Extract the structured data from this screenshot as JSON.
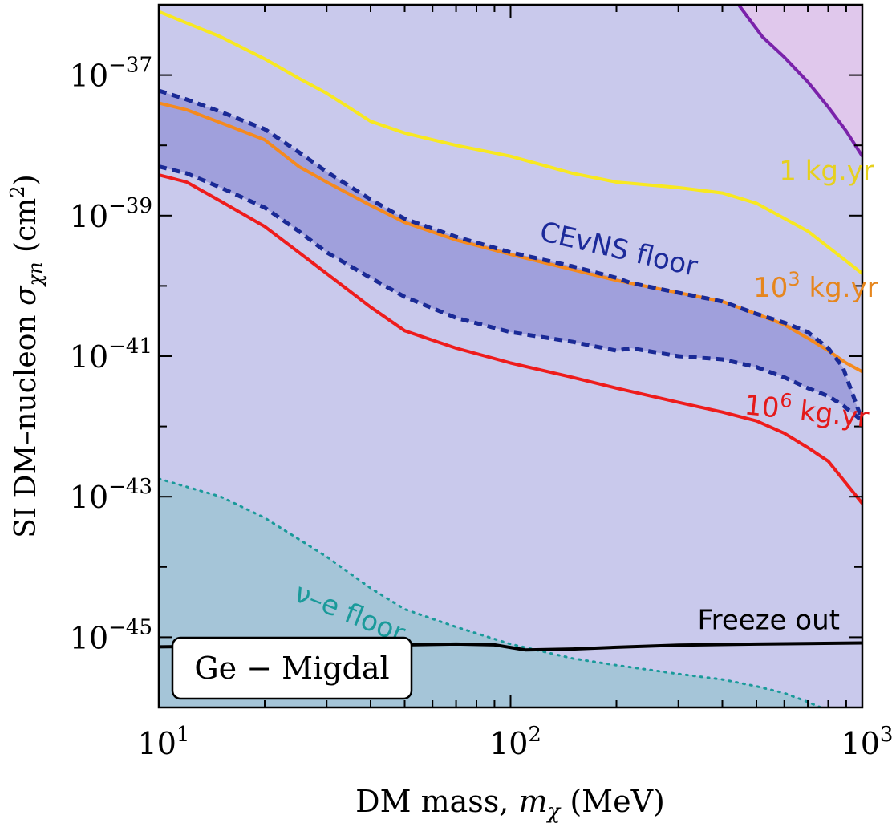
{
  "chart_data": {
    "type": "line",
    "xlabel_text": "DM mass, ",
    "xlabel_var": "m",
    "xlabel_sub": "χ",
    "xlabel_unit": " (MeV)",
    "ylabel_text": "SI DM–nucleon ",
    "ylabel_var": "σ",
    "ylabel_sub": "χn",
    "ylabel_unit": " (cm",
    "ylabel_unit_sup": "2",
    "ylabel_unit_end": ")",
    "x_scale": "log",
    "y_scale": "log",
    "xlim": [
      10,
      1000
    ],
    "ylim": [
      1e-46,
      1e-36
    ],
    "x_ticks": [
      {
        "value": 10,
        "base": "10",
        "exp": "1"
      },
      {
        "value": 100,
        "base": "10",
        "exp": "2"
      },
      {
        "value": 1000,
        "base": "10",
        "exp": "3"
      }
    ],
    "y_ticks": [
      {
        "value": 1e-37,
        "base": "10",
        "exp": "−37"
      },
      {
        "value": 1e-39,
        "base": "10",
        "exp": "−39"
      },
      {
        "value": 1e-41,
        "base": "10",
        "exp": "−41"
      },
      {
        "value": 1e-43,
        "base": "10",
        "exp": "−43"
      },
      {
        "value": 1e-45,
        "base": "10",
        "exp": "−45"
      }
    ],
    "regions": [
      {
        "key": "excluded",
        "color": "#c9c9ec",
        "upper": {
          "x": [
            10,
            1000
          ],
          "y": [
            1e-36,
            1e-36
          ]
        }
      },
      {
        "key": "cevns",
        "color": "#a0a0dc",
        "upper": {
          "x": [
            10,
            12,
            15,
            20,
            25,
            30,
            40,
            50,
            70,
            100,
            150,
            200,
            220,
            300,
            400,
            500,
            600,
            700,
            800,
            880,
            1000
          ],
          "y": [
            6e-38,
            4.5e-38,
            3e-38,
            1.7e-38,
            8e-39,
            4.2e-39,
            1.7e-39,
            9e-40,
            5e-40,
            3e-40,
            1.9e-40,
            1.3e-40,
            1.1e-40,
            8e-41,
            6e-41,
            4e-41,
            3e-41,
            2.2e-41,
            1.3e-41,
            7e-42,
            1.2e-42
          ]
        },
        "lower": {
          "x": [
            10,
            12,
            15,
            20,
            25,
            30,
            40,
            50,
            70,
            100,
            150,
            200,
            220,
            300,
            400,
            500,
            600,
            700,
            800,
            880,
            1000
          ],
          "y": [
            5e-39,
            4e-39,
            2.5e-39,
            1.3e-39,
            6e-40,
            3e-40,
            1.3e-40,
            7e-41,
            3.5e-41,
            2.2e-41,
            1.6e-41,
            1.2e-41,
            1.3e-41,
            1e-41,
            9e-42,
            7e-42,
            5e-42,
            3.5e-42,
            2.7e-42,
            2e-42,
            1.2e-42
          ]
        }
      },
      {
        "key": "nu_e",
        "color": "#a5c5d8",
        "upper": {
          "x": [
            10,
            15,
            20,
            30,
            40,
            50,
            70,
            100,
            150,
            200,
            300,
            400,
            500,
            600,
            700,
            800
          ],
          "y": [
            1.8e-43,
            1e-43,
            5e-44,
            1.4e-44,
            5e-45,
            2.5e-45,
            1.4e-45,
            8e-46,
            5e-46,
            4e-46,
            3e-46,
            2.5e-46,
            2e-46,
            1.6e-46,
            1.2e-46,
            9e-47
          ]
        }
      },
      {
        "key": "purple_excl",
        "color": "#e0c8ec",
        "upper": {
          "x": [
            445,
            1000
          ],
          "y": [
            1e-36,
            1e-36
          ]
        },
        "lower": {
          "x": [
            445,
            480,
            520,
            600,
            700,
            800,
            900,
            1000
          ],
          "y": [
            1e-36,
            6e-37,
            3.5e-37,
            1.8e-37,
            8e-38,
            3.5e-38,
            1.6e-38,
            7e-39
          ]
        }
      }
    ],
    "series": [
      {
        "key": "ge_1kgyr",
        "color": "#f8e820",
        "width": 4,
        "dash": "",
        "x": [
          10,
          12,
          15,
          20,
          25,
          30,
          40,
          50,
          70,
          100,
          150,
          200,
          300,
          400,
          500,
          700,
          1000
        ],
        "y": [
          8e-37,
          5.5e-37,
          3.5e-37,
          1.7e-37,
          9e-38,
          5.5e-38,
          2.2e-38,
          1.5e-38,
          1e-38,
          7e-39,
          4e-39,
          3e-39,
          2.5e-39,
          2.1e-39,
          1.5e-39,
          6e-40,
          1.5e-40
        ]
      },
      {
        "key": "ge_1e3kgyr",
        "color": "#f58a1e",
        "width": 4,
        "dash": "",
        "x": [
          10,
          12,
          15,
          20,
          25,
          30,
          40,
          50,
          70,
          100,
          150,
          200,
          300,
          400,
          500,
          600,
          700,
          800,
          900,
          1000
        ],
        "y": [
          4e-38,
          3.2e-38,
          2.1e-38,
          1.2e-38,
          5e-39,
          3e-39,
          1.4e-39,
          8e-40,
          4.5e-40,
          2.8e-40,
          1.7e-40,
          1.2e-40,
          8e-41,
          6e-41,
          4e-41,
          2.8e-41,
          1.8e-41,
          1.2e-41,
          8e-42,
          6e-42
        ]
      },
      {
        "key": "ge_1e6kgyr",
        "color": "#ee1c1c",
        "width": 4,
        "dash": "",
        "x": [
          10,
          12,
          15,
          20,
          25,
          30,
          40,
          50,
          70,
          100,
          150,
          200,
          300,
          400,
          500,
          600,
          700,
          800,
          1000
        ],
        "y": [
          3.8e-39,
          3e-39,
          1.6e-39,
          7e-40,
          3e-40,
          1.5e-40,
          5e-41,
          2.3e-41,
          1.3e-41,
          8e-42,
          5e-42,
          3.5e-42,
          2.2e-42,
          1.6e-42,
          1.2e-42,
          8e-43,
          5e-43,
          3.2e-43,
          8e-44
        ]
      },
      {
        "key": "cevns_upper",
        "color": "#1a2a96",
        "width": 5,
        "dash": "10,7",
        "x": [
          10,
          12,
          15,
          20,
          25,
          30,
          40,
          50,
          70,
          100,
          150,
          200,
          220,
          300,
          400,
          500,
          600,
          700,
          800,
          880,
          1000
        ],
        "y": [
          6e-38,
          4.5e-38,
          3e-38,
          1.7e-38,
          8e-39,
          4.2e-39,
          1.7e-39,
          9e-40,
          5e-40,
          3e-40,
          1.9e-40,
          1.3e-40,
          1.1e-40,
          8e-41,
          6e-41,
          4e-41,
          3e-41,
          2.2e-41,
          1.3e-41,
          7e-42,
          1.2e-42
        ]
      },
      {
        "key": "cevns_lower",
        "color": "#1a2a96",
        "width": 5,
        "dash": "10,7",
        "x": [
          10,
          12,
          15,
          20,
          25,
          30,
          40,
          50,
          70,
          100,
          150,
          200,
          220,
          300,
          400,
          500,
          600,
          700,
          800,
          880,
          1000
        ],
        "y": [
          5e-39,
          4e-39,
          2.5e-39,
          1.3e-39,
          6e-40,
          3e-40,
          1.3e-40,
          7e-41,
          3.5e-41,
          2.2e-41,
          1.6e-41,
          1.2e-41,
          1.3e-41,
          1e-41,
          9e-42,
          7e-42,
          5e-42,
          3.5e-42,
          2.7e-42,
          2e-42,
          1.2e-42
        ]
      },
      {
        "key": "nu_e_floor",
        "color": "#1a9a9a",
        "width": 3,
        "dash": "2,7",
        "x": [
          10,
          15,
          20,
          30,
          40,
          50,
          70,
          100,
          150,
          200,
          300,
          400,
          500,
          600,
          700,
          800
        ],
        "y": [
          1.8e-43,
          1e-43,
          5e-44,
          1.4e-44,
          5e-45,
          2.5e-45,
          1.4e-45,
          8e-46,
          5e-46,
          4e-46,
          3e-46,
          2.5e-46,
          2e-46,
          1.6e-46,
          1.2e-46,
          9e-47
        ]
      },
      {
        "key": "freeze_out",
        "color": "#000000",
        "width": 4,
        "dash": "",
        "x": [
          10,
          20,
          30,
          50,
          70,
          90,
          110,
          150,
          200,
          300,
          500,
          1000
        ],
        "y": [
          7.3e-46,
          7.6e-46,
          7.5e-46,
          7.8e-46,
          8e-46,
          7.8e-46,
          6.6e-46,
          6.8e-46,
          7.2e-46,
          7.7e-46,
          8e-46,
          8.3e-46
        ]
      },
      {
        "key": "purple_bound",
        "color": "#7a22aa",
        "width": 4,
        "dash": "",
        "x": [
          445,
          480,
          520,
          600,
          700,
          800,
          900,
          1000
        ],
        "y": [
          1e-36,
          6e-37,
          3.5e-37,
          1.8e-37,
          8e-38,
          3.5e-38,
          1.6e-38,
          7e-39
        ]
      }
    ],
    "annotations": [
      {
        "key": "label_1kgyr",
        "text": "1 kg.yr",
        "x": 580,
        "y": 3.2e-39,
        "color": "#e6d01e",
        "rotate": 0
      },
      {
        "key": "label_1e3kgyr",
        "text": "10",
        "sup": "3",
        "tail": " kg.yr",
        "x": 490,
        "y": 7e-41,
        "color": "#e6861e",
        "rotate": 0
      },
      {
        "key": "label_1e6kgyr",
        "text": "10",
        "sup": "6",
        "tail": " kg.yr",
        "x": 460,
        "y": 1.5e-42,
        "color": "#e41a1a",
        "rotate": 6
      },
      {
        "key": "label_cevns",
        "text": "CEvNS floor",
        "x": 120,
        "y": 4.5e-40,
        "color": "#1c2a9a",
        "rotate": 13
      },
      {
        "key": "label_nue",
        "text": "ν–e floor",
        "x": 24,
        "y": 3.4e-45,
        "color": "#1a9a9a",
        "rotate": 22
      },
      {
        "key": "label_freeze",
        "text": "Freeze out",
        "x": 340,
        "y": 1.3e-45,
        "color": "#000000",
        "rotate": 0
      }
    ],
    "legend_box": {
      "text": "Ge − Migdal",
      "placement": "bottom-left"
    }
  }
}
